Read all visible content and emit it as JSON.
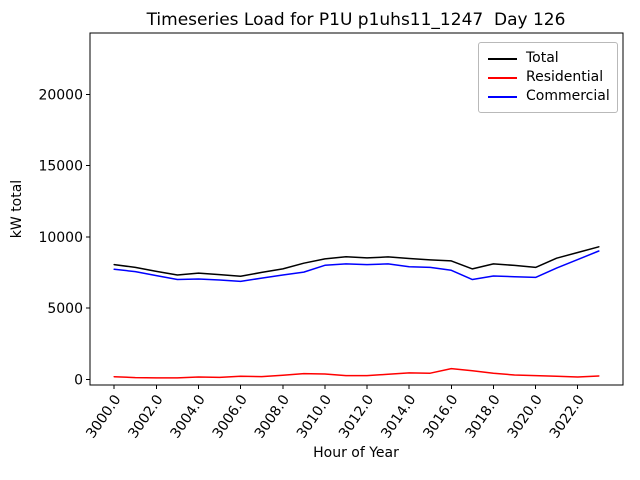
{
  "title": "Timeseries Load for P1U p1uhs11_1247  Day 126",
  "chart_data": {
    "type": "line",
    "title": "Timeseries Load for P1U p1uhs11_1247  Day 126",
    "xlabel": "Hour of Year",
    "ylabel": "kW total",
    "x": [
      3000,
      3001,
      3002,
      3003,
      3004,
      3005,
      3006,
      3007,
      3008,
      3009,
      3010,
      3011,
      3012,
      3013,
      3014,
      3015,
      3016,
      3017,
      3018,
      3019,
      3020,
      3021,
      3022,
      3023
    ],
    "series": [
      {
        "name": "Total",
        "color": "#000000",
        "values": [
          8050,
          7850,
          7570,
          7320,
          7450,
          7350,
          7230,
          7500,
          7750,
          8150,
          8450,
          8600,
          8520,
          8590,
          8480,
          8380,
          8310,
          7750,
          8100,
          7990,
          7850,
          8500,
          8900,
          9300
        ]
      },
      {
        "name": "Residential",
        "color": "#ff0000",
        "values": [
          180,
          120,
          100,
          100,
          160,
          130,
          220,
          190,
          280,
          400,
          370,
          260,
          260,
          350,
          450,
          430,
          750,
          600,
          420,
          300,
          260,
          210,
          160,
          230
        ]
      },
      {
        "name": "Commercial",
        "color": "#0000ff",
        "values": [
          7720,
          7560,
          7280,
          7000,
          7040,
          6970,
          6870,
          7100,
          7320,
          7520,
          8000,
          8100,
          8050,
          8100,
          7900,
          7850,
          7650,
          7000,
          7250,
          7200,
          7150,
          7800,
          8400,
          9000
        ]
      }
    ],
    "xticks": [
      3000,
      3002,
      3004,
      3006,
      3008,
      3010,
      3012,
      3014,
      3016,
      3018,
      3020,
      3022
    ],
    "xtick_labels": [
      "3000.0",
      "3002.0",
      "3004.0",
      "3006.0",
      "3008.0",
      "3010.0",
      "3012.0",
      "3014.0",
      "3016.0",
      "3018.0",
      "3020.0",
      "3022.0"
    ],
    "yticks": [
      0,
      5000,
      10000,
      15000,
      20000
    ],
    "ytick_labels": [
      "0",
      "5000",
      "10000",
      "15000",
      "20000"
    ],
    "xlim": [
      2998.85,
      3024.15
    ],
    "ylim": [
      -400,
      24300
    ],
    "xtick_rotation_deg": 55,
    "grid": false,
    "legend_position": "upper right"
  }
}
